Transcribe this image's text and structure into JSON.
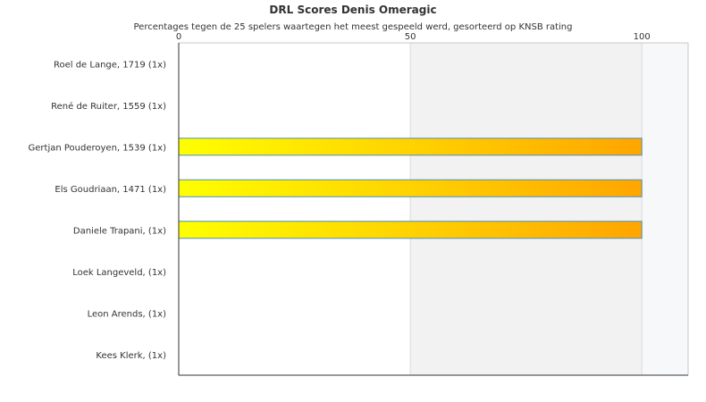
{
  "chart_data": {
    "type": "bar",
    "orientation": "horizontal",
    "title": "DRL Scores Denis Omeragic",
    "subtitle": "Percentages tegen de 25 spelers waartegen het meest gespeeld werd, gesorteerd op KNSB rating",
    "categories": [
      "Roel de Lange, 1719 (1x)",
      "René de Ruiter, 1559 (1x)",
      "Gertjan Pouderoyen, 1539 (1x)",
      "Els Goudriaan, 1471 (1x)",
      "Daniele Trapani,  (1x)",
      "Loek Langeveld,  (1x)",
      "Leon Arends,  (1x)",
      "Kees Klerk,  (1x)"
    ],
    "values": [
      0,
      0,
      100,
      100,
      100,
      0,
      0,
      0
    ],
    "xlim": [
      0,
      110
    ],
    "xticks": [
      0,
      50,
      100
    ],
    "xtick_labels": [
      "0",
      "50",
      "100"
    ],
    "xaxis_position": "top",
    "grid": true,
    "bar_gradient": [
      "#ffff00",
      "#ffa500"
    ],
    "bar_border": "#4a90c0",
    "band_colors": [
      "#ffffff",
      "#f2f2f2",
      "#f7f8fa"
    ]
  }
}
